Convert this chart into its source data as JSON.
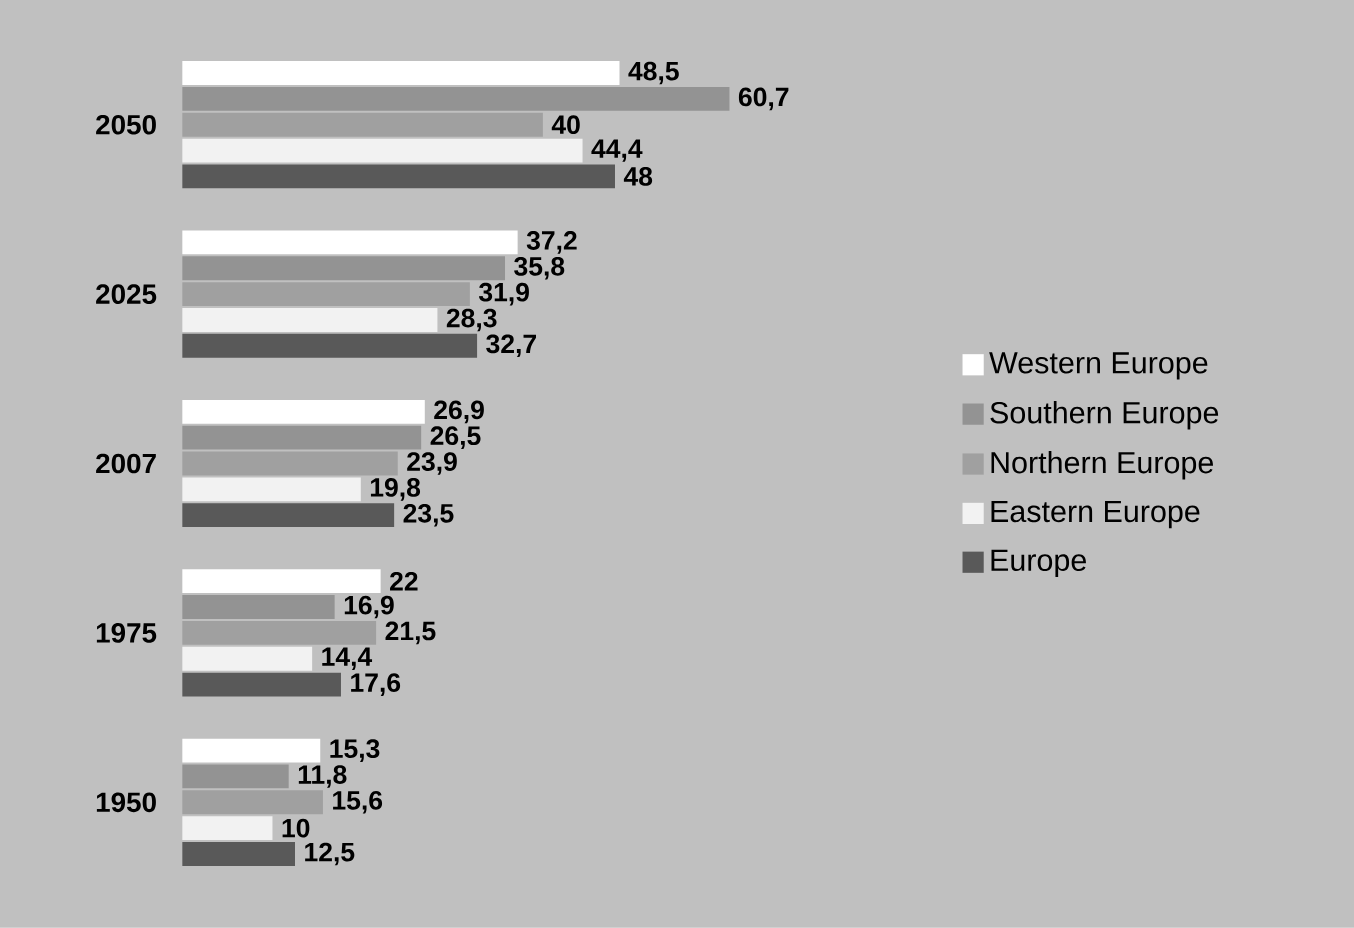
{
  "chart_data": {
    "type": "bar",
    "orientation": "horizontal",
    "legend": "right",
    "categories": [
      "2050",
      "2025",
      "2007",
      "1975",
      "1950"
    ],
    "series": [
      {
        "name": "Western Europe",
        "color": "#ffffff",
        "values": [
          48.5,
          37.2,
          26.9,
          22,
          15.3
        ],
        "value_labels": [
          "48,5",
          "37,2",
          "26,9",
          "22",
          "15,3"
        ]
      },
      {
        "name": "Southern Europe",
        "color": "#939393",
        "values": [
          60.7,
          35.8,
          26.5,
          16.9,
          11.8
        ],
        "value_labels": [
          "60,7",
          "35,8",
          "26,5",
          "16,9",
          "11,8"
        ]
      },
      {
        "name": "Northern Europe",
        "color": "#a0a0a0",
        "values": [
          40,
          31.9,
          23.9,
          21.5,
          15.6
        ],
        "value_labels": [
          "40",
          "31,9",
          "23,9",
          "21,5",
          "15,6"
        ]
      },
      {
        "name": "Eastern Europe",
        "color": "#f2f2f2",
        "values": [
          44.4,
          28.3,
          19.8,
          14.4,
          10
        ],
        "value_labels": [
          "44,4",
          "28,3",
          "19,8",
          "14,4",
          "10"
        ]
      },
      {
        "name": "Europe",
        "color": "#595959",
        "values": [
          48,
          32.7,
          23.5,
          17.6,
          12.5
        ],
        "value_labels": [
          "48",
          "32,7",
          "23,5",
          "17,6",
          "12,5"
        ]
      }
    ]
  }
}
